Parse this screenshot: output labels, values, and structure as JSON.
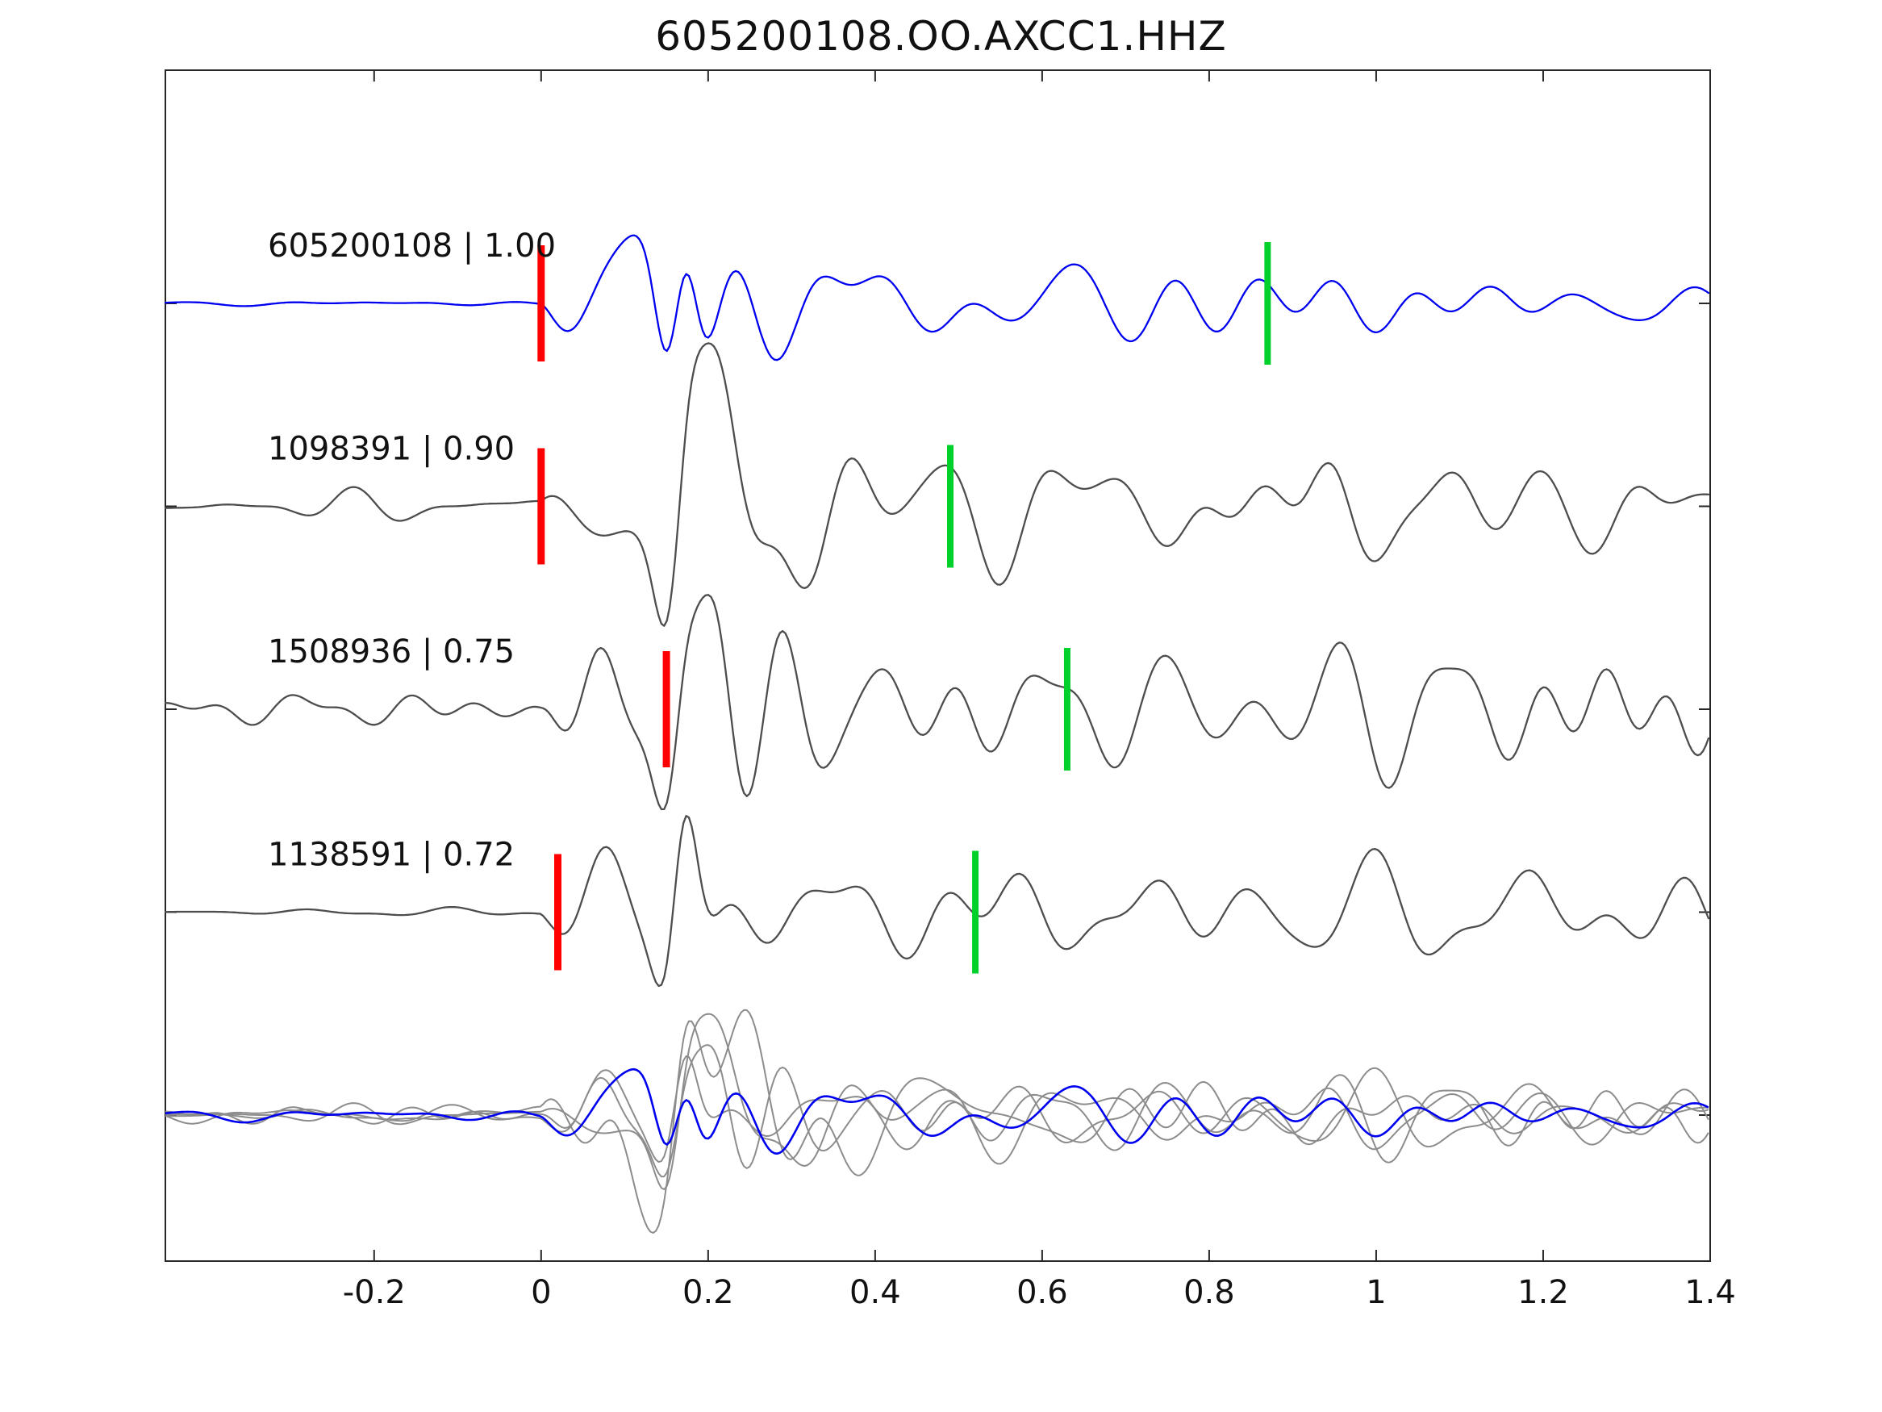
{
  "chart_data": {
    "type": "line",
    "title": "605200108.OO.AXCC1.HHZ",
    "xlabel": "",
    "ylabel": "",
    "xlim": [
      -0.45,
      1.4
    ],
    "grid": false,
    "legend_position": "none",
    "xticks": [
      -0.2,
      0,
      0.2,
      0.4,
      0.6,
      0.8,
      1,
      1.2,
      1.4
    ],
    "xtick_labels": [
      "-0.2",
      "0",
      "0.2",
      "0.4",
      "0.6",
      "0.8",
      "1",
      "1.2",
      "1.4"
    ],
    "colors": {
      "reference_blue": "#0000f0",
      "match_gray": "#4d4d4d",
      "overlay_gray": "#8c8c8c",
      "pick_red": "#ff0000",
      "pick_green": "#00d02a",
      "frame": "#262626",
      "text": "#111111"
    },
    "traces": [
      {
        "label": "605200108 | 1.00",
        "event_id": "605200108",
        "correlation": 1.0,
        "role": "reference",
        "color": "#0000f0",
        "red_pick_x": 0.0,
        "green_pick_x": 0.87
      },
      {
        "label": "1098391 | 0.90",
        "event_id": "1098391",
        "correlation": 0.9,
        "role": "match",
        "color": "#4d4d4d",
        "red_pick_x": 0.0,
        "green_pick_x": 0.49
      },
      {
        "label": "1508936 | 0.75",
        "event_id": "1508936",
        "correlation": 0.75,
        "role": "match",
        "color": "#4d4d4d",
        "red_pick_x": 0.15,
        "green_pick_x": 0.63
      },
      {
        "label": "1138591 | 0.72",
        "event_id": "1138591",
        "correlation": 0.72,
        "role": "match",
        "color": "#4d4d4d",
        "red_pick_x": 0.02,
        "green_pick_x": 0.52
      }
    ],
    "overlay_row": {
      "description": "all traces aligned and superimposed",
      "gray_color": "#8c8c8c",
      "blue_color": "#0000f0",
      "num_gray_members": 4
    }
  }
}
